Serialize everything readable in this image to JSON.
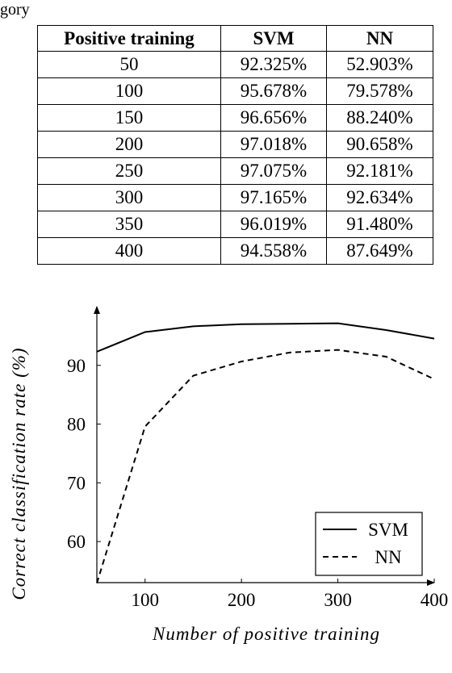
{
  "caption_fragment": "gory",
  "table": {
    "headers": [
      "Positive training",
      "SVM",
      "NN"
    ],
    "rows": [
      [
        "50",
        "92.325%",
        "52.903%"
      ],
      [
        "100",
        "95.678%",
        "79.578%"
      ],
      [
        "150",
        "96.656%",
        "88.240%"
      ],
      [
        "200",
        "97.018%",
        "90.658%"
      ],
      [
        "250",
        "97.075%",
        "92.181%"
      ],
      [
        "300",
        "97.165%",
        "92.634%"
      ],
      [
        "350",
        "96.019%",
        "91.480%"
      ],
      [
        "400",
        "94.558%",
        "87.649%"
      ]
    ]
  },
  "chart_data": {
    "type": "line",
    "xlabel": "Number of positive training",
    "ylabel": "Correct classification rate (%)",
    "xlim": [
      50,
      400
    ],
    "ylim": [
      53,
      100
    ],
    "xticks": [
      100,
      200,
      300,
      400
    ],
    "yticks": [
      60,
      70,
      80,
      90
    ],
    "grid": false,
    "legend": "bottom-right",
    "x": [
      50,
      100,
      150,
      200,
      250,
      300,
      350,
      400
    ],
    "series": [
      {
        "name": "SVM",
        "style": "solid",
        "values": [
          92.325,
          95.678,
          96.656,
          97.018,
          97.075,
          97.165,
          96.019,
          94.558
        ]
      },
      {
        "name": "NN",
        "style": "dashed",
        "values": [
          52.903,
          79.578,
          88.24,
          90.658,
          92.181,
          92.634,
          91.48,
          87.649
        ]
      }
    ]
  }
}
